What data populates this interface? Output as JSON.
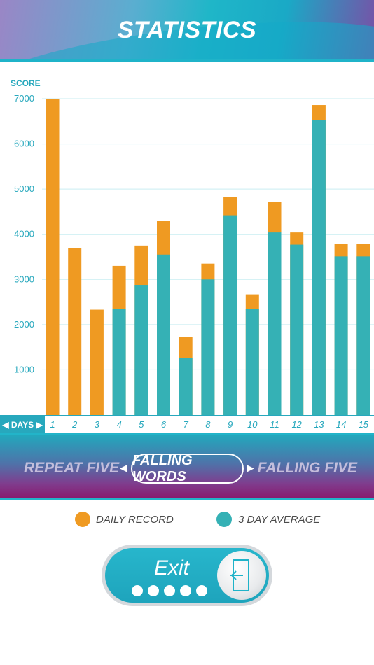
{
  "header": {
    "title": "STATISTICS"
  },
  "chart_data": {
    "type": "bar",
    "ylabel": "SCORE",
    "xlabel": "DAYS",
    "ylim": [
      0,
      7000
    ],
    "yticks": [
      1000,
      2000,
      3000,
      4000,
      5000,
      6000,
      7000
    ],
    "categories": [
      "1",
      "2",
      "3",
      "4",
      "5",
      "6",
      "7",
      "8",
      "9",
      "10",
      "11",
      "12",
      "13",
      "14",
      "15"
    ],
    "series": [
      {
        "name": "DAILY RECORD",
        "color": "#ef9a22",
        "values": [
          7000,
          3700,
          2330,
          3300,
          3750,
          4290,
          1730,
          3350,
          4820,
          2670,
          4710,
          4040,
          6860,
          3790,
          3790
        ]
      },
      {
        "name": "3 DAY AVERAGE",
        "color": "#35b1b5",
        "values": [
          0,
          0,
          0,
          2340,
          2880,
          3550,
          1260,
          3000,
          4420,
          2350,
          4040,
          3770,
          6520,
          3510,
          3510
        ]
      }
    ],
    "grid": true,
    "legend": "bottom"
  },
  "modes": {
    "left": "REPEAT FIVE",
    "current": "FALLING WORDS",
    "right": "FALLING FIVE",
    "prev_arrow": "◀",
    "next_arrow": "▶"
  },
  "legend": {
    "daily": "DAILY RECORD",
    "average": "3 DAY AVERAGE"
  },
  "exit": {
    "label": "Exit",
    "dots": 5
  },
  "colors": {
    "accent": "#1fb3c9",
    "orange": "#ef9a22",
    "teal": "#35b1b5"
  }
}
